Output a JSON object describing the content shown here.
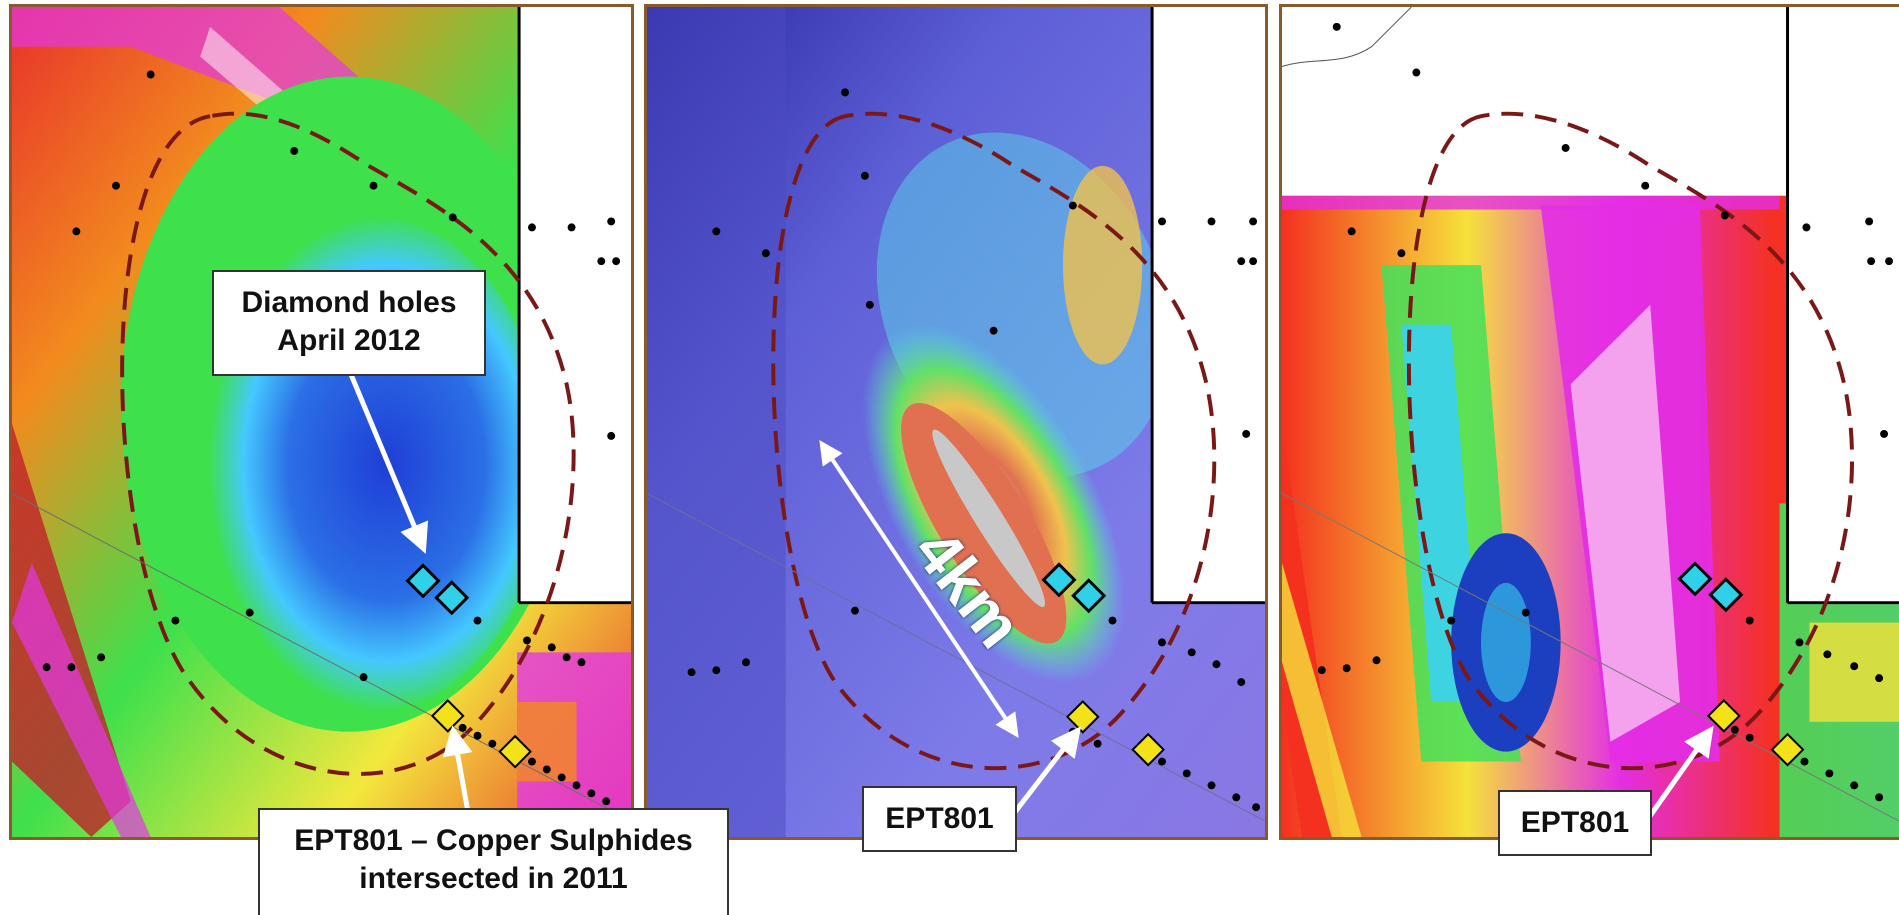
{
  "panels": [
    {
      "name": "panel-magnetic-rtp",
      "colors": [
        "#1f3fd6",
        "#45c8ff",
        "#3ee04c",
        "#f3e83d",
        "#f28b1e",
        "#e8322b",
        "#e238e6"
      ]
    },
    {
      "name": "panel-gravity-shaded",
      "colors": [
        "#3a2fa8",
        "#6f7be8",
        "#59d6e8",
        "#61e068",
        "#f0c24e",
        "#e07050",
        "#c8c8c8"
      ]
    },
    {
      "name": "panel-magnetic-derivative",
      "colors": [
        "#1b3fbf",
        "#3ad2f0",
        "#42e05a",
        "#f5e23a",
        "#f4311f",
        "#e32ee4",
        "#f4a8ee"
      ]
    }
  ],
  "labels": {
    "diamond_holes_line1": "Diamond holes",
    "diamond_holes_line2": "April 2012",
    "ept801_caption_line1": "EPT801 – Copper Sulphides",
    "ept801_caption_line2": "intersected in 2011",
    "ept801_middle": "EPT801",
    "ept801_right": "EPT801",
    "scale": "4km"
  },
  "symbols": {
    "diamond_hole_color": "#2fd0e8",
    "ept801_color": "#f3e21a",
    "target_outline_color": "#7a1818",
    "arrow_color": "#ffffff"
  }
}
